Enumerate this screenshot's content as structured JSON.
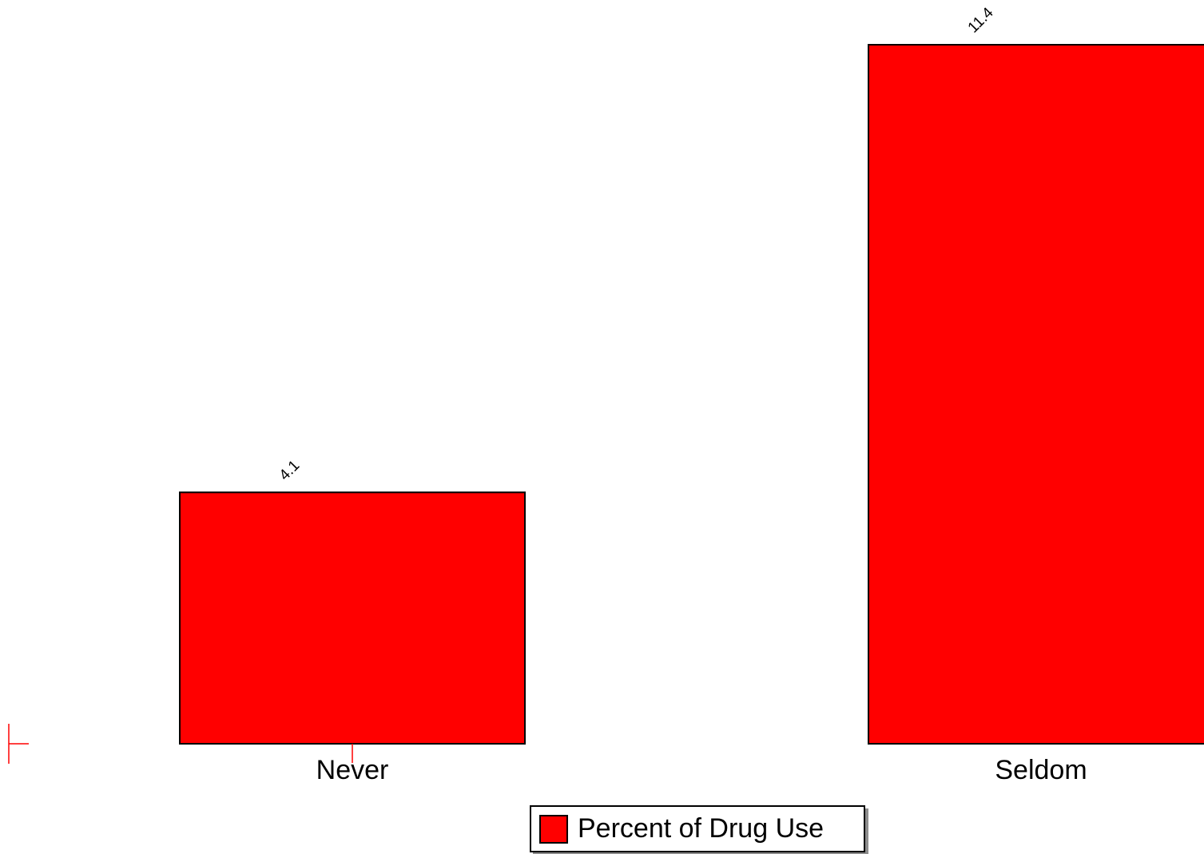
{
  "chart_data": {
    "type": "bar",
    "categories": [
      "Never",
      "Seldom"
    ],
    "series": [
      {
        "name": "Percent of Drug Use",
        "values": [
          4.1,
          11.4
        ],
        "color": "#ff0000"
      }
    ],
    "data_labels": [
      "4.1",
      "11.4"
    ],
    "legend_position": "bottom-center",
    "grid": false,
    "ylim": [
      0,
      11.4
    ]
  },
  "colors": {
    "bar_fill": "#ff0000",
    "bar_stroke": "#000000",
    "axis_marker": "#ff0000"
  }
}
